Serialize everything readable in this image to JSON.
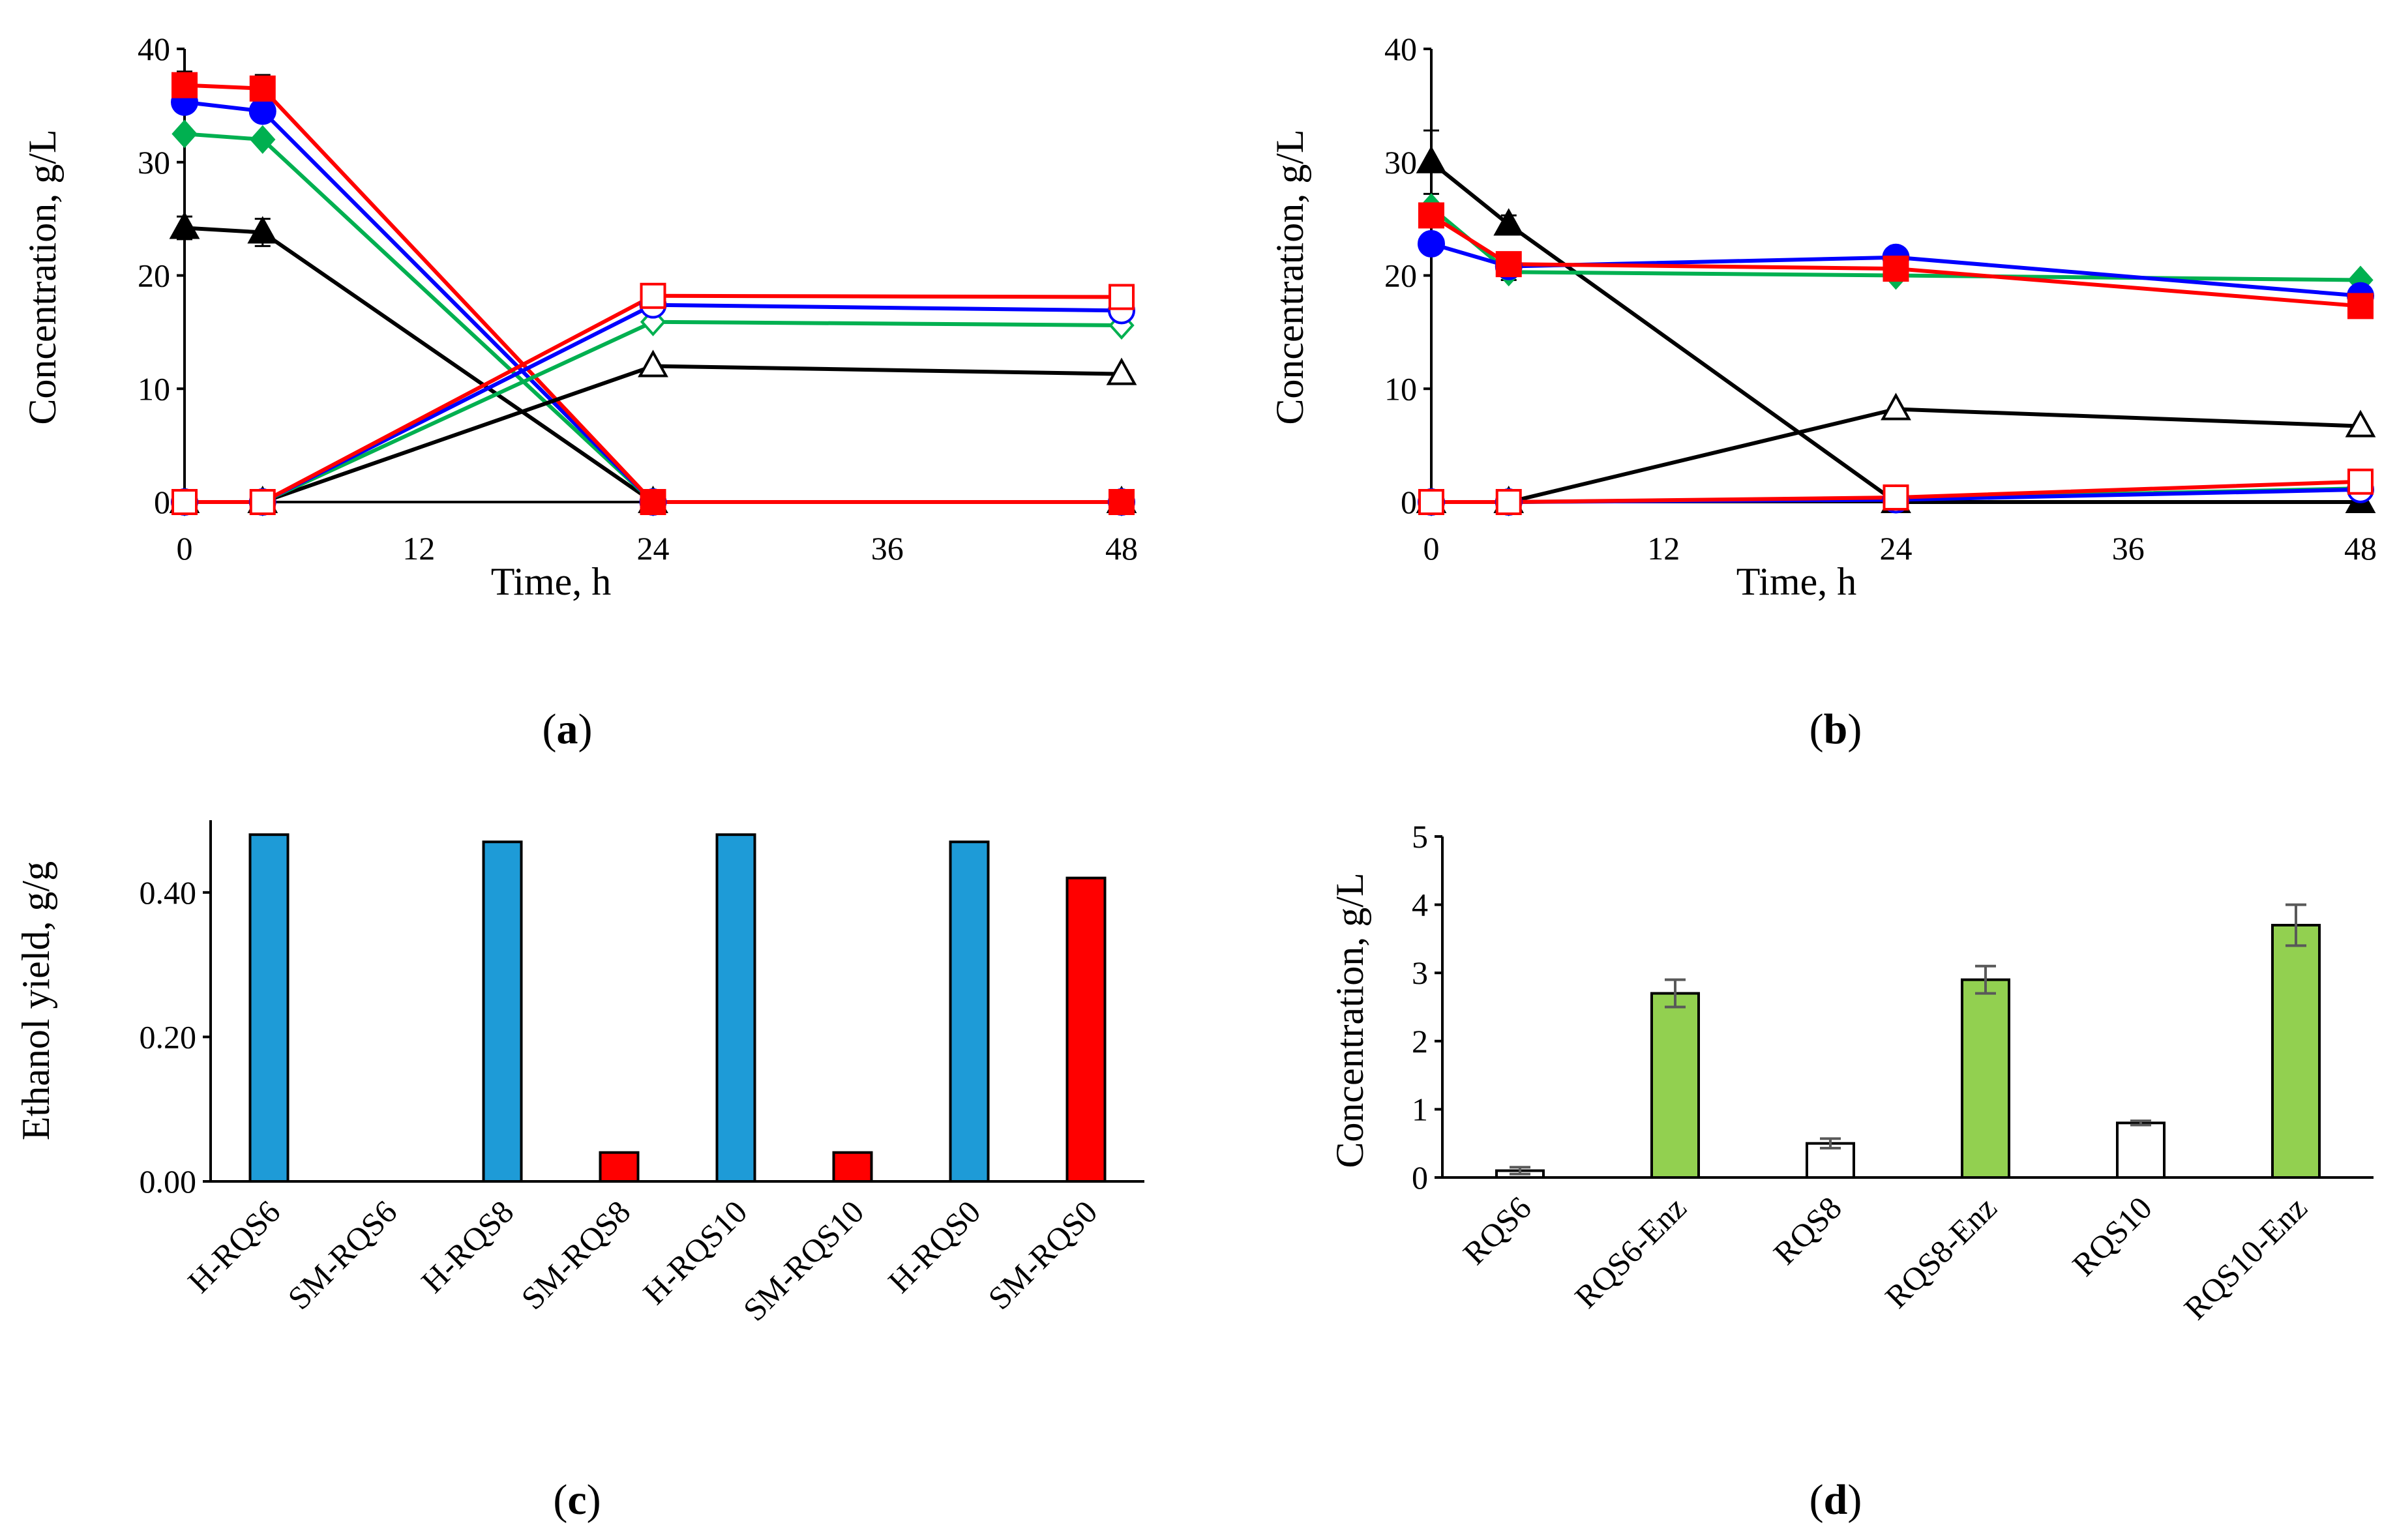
{
  "colors": {
    "black": "#000000",
    "blue": "#0000ff",
    "green": "#00b050",
    "red": "#ff0000",
    "bar_blue": "#1e9bd7",
    "bar_red": "#ff0000",
    "bar_green": "#92d050",
    "bar_white": "#ffffff",
    "errorbar": "#595959"
  },
  "chart_data": [
    {
      "panel": "a",
      "label_open": "(",
      "label_letter": "a",
      "label_close": ")",
      "type": "line",
      "xlabel": "Time, h",
      "ylabel": "Concentration, g/L",
      "xlim": [
        0,
        48
      ],
      "ylim": [
        0,
        40
      ],
      "xticks": [
        0,
        12,
        24,
        36,
        48
      ],
      "yticks": [
        0,
        10,
        20,
        30,
        40
      ],
      "series": [
        {
          "name": "black filled triangle",
          "color": "black",
          "marker": "triangle",
          "filled": true,
          "x": [
            0,
            4,
            24,
            48
          ],
          "y": [
            24.2,
            23.8,
            0,
            0
          ],
          "err": [
            1.0,
            1.2,
            0,
            0
          ]
        },
        {
          "name": "green filled diamond",
          "color": "green",
          "marker": "diamond",
          "filled": true,
          "x": [
            0,
            4,
            24,
            48
          ],
          "y": [
            32.5,
            32.0,
            0,
            0
          ],
          "err": [
            0,
            0,
            0,
            0
          ]
        },
        {
          "name": "blue filled circle",
          "color": "blue",
          "marker": "circle",
          "filled": true,
          "x": [
            0,
            4,
            24,
            48
          ],
          "y": [
            35.3,
            34.5,
            0,
            0
          ],
          "err": [
            0,
            0,
            0,
            0
          ]
        },
        {
          "name": "red filled square",
          "color": "red",
          "marker": "square",
          "filled": true,
          "x": [
            0,
            4,
            24,
            48
          ],
          "y": [
            36.8,
            36.5,
            0,
            0
          ],
          "err": [
            1.2,
            1.2,
            0,
            0
          ]
        },
        {
          "name": "black open triangle",
          "color": "black",
          "marker": "triangle",
          "filled": false,
          "x": [
            0,
            4,
            24,
            48
          ],
          "y": [
            0,
            0,
            12.0,
            11.3
          ],
          "err": [
            0,
            0,
            0,
            0
          ]
        },
        {
          "name": "green open diamond",
          "color": "green",
          "marker": "diamond",
          "filled": false,
          "x": [
            0,
            4,
            24,
            48
          ],
          "y": [
            0,
            0,
            15.9,
            15.6
          ],
          "err": [
            0,
            0,
            0,
            0
          ]
        },
        {
          "name": "blue open circle",
          "color": "blue",
          "marker": "circle",
          "filled": false,
          "x": [
            0,
            4,
            24,
            48
          ],
          "y": [
            0,
            0,
            17.4,
            16.9
          ],
          "err": [
            0,
            0,
            0,
            0
          ]
        },
        {
          "name": "red open square",
          "color": "red",
          "marker": "square",
          "filled": false,
          "x": [
            0,
            4,
            24,
            48
          ],
          "y": [
            0,
            0,
            18.2,
            18.1
          ],
          "err": [
            0,
            0,
            0,
            0
          ]
        }
      ]
    },
    {
      "panel": "b",
      "label_open": "(",
      "label_letter": "b",
      "label_close": ")",
      "type": "line",
      "xlabel": "Time, h",
      "ylabel": "Concentration, g/L",
      "xlim": [
        0,
        48
      ],
      "ylim": [
        0,
        40
      ],
      "xticks": [
        0,
        12,
        24,
        36,
        48
      ],
      "yticks": [
        0,
        10,
        20,
        30,
        40
      ],
      "series": [
        {
          "name": "black filled triangle",
          "color": "black",
          "marker": "triangle",
          "filled": true,
          "x": [
            0,
            4,
            24,
            48
          ],
          "y": [
            30.0,
            24.5,
            0,
            0
          ],
          "err": [
            2.8,
            0.8,
            0,
            0
          ]
        },
        {
          "name": "green filled diamond",
          "color": "green",
          "marker": "diamond",
          "filled": true,
          "x": [
            0,
            4,
            24,
            48
          ],
          "y": [
            26.0,
            20.3,
            20.0,
            19.6
          ],
          "err": [
            0,
            0,
            0,
            0
          ]
        },
        {
          "name": "blue filled circle",
          "color": "blue",
          "marker": "circle",
          "filled": true,
          "x": [
            0,
            4,
            24,
            48
          ],
          "y": [
            22.8,
            20.8,
            21.6,
            18.2
          ],
          "err": [
            0,
            1.2,
            0,
            0
          ]
        },
        {
          "name": "red filled square",
          "color": "red",
          "marker": "square",
          "filled": true,
          "x": [
            0,
            4,
            24,
            48
          ],
          "y": [
            25.3,
            21.0,
            20.6,
            17.3
          ],
          "err": [
            0,
            0,
            0,
            0
          ]
        },
        {
          "name": "black open triangle",
          "color": "black",
          "marker": "triangle",
          "filled": false,
          "x": [
            0,
            4,
            24,
            48
          ],
          "y": [
            0,
            0,
            8.2,
            6.7
          ],
          "err": [
            0,
            0,
            0,
            0
          ]
        },
        {
          "name": "green open diamond",
          "color": "green",
          "marker": "diamond",
          "filled": false,
          "x": [
            0,
            4,
            24,
            48
          ],
          "y": [
            0,
            0,
            0.3,
            1.2
          ],
          "err": [
            0,
            0,
            0,
            0
          ]
        },
        {
          "name": "blue open circle",
          "color": "blue",
          "marker": "circle",
          "filled": false,
          "x": [
            0,
            4,
            24,
            48
          ],
          "y": [
            0,
            0,
            0.2,
            1.1
          ],
          "err": [
            0,
            0,
            0,
            0
          ]
        },
        {
          "name": "red open square",
          "color": "red",
          "marker": "square",
          "filled": false,
          "x": [
            0,
            4,
            24,
            48
          ],
          "y": [
            0,
            0,
            0.4,
            1.8
          ],
          "err": [
            0,
            0,
            0,
            0
          ]
        }
      ]
    },
    {
      "panel": "c",
      "label_open": "(",
      "label_letter": "c",
      "label_close": ")",
      "type": "bar",
      "ylabel": "Ethanol yield, g/g",
      "ylim": [
        0,
        0.5
      ],
      "ytick_values": [
        0,
        0.2,
        0.4
      ],
      "ytick_labels": [
        "0.00",
        "0.20",
        "0.40"
      ],
      "categories": [
        "H-RQS6",
        "SM-RQS6",
        "H-RQS8",
        "SM-RQS8",
        "H-RQS10",
        "SM-RQS10",
        "H-RQS0",
        "SM-RQS0"
      ],
      "values": [
        0.48,
        0.0,
        0.47,
        0.04,
        0.48,
        0.04,
        0.47,
        0.42
      ],
      "bar_colors": [
        "bar_blue",
        "bar_red",
        "bar_blue",
        "bar_red",
        "bar_blue",
        "bar_red",
        "bar_blue",
        "bar_red"
      ]
    },
    {
      "panel": "d",
      "label_open": "(",
      "label_letter": "d",
      "label_close": ")",
      "type": "bar",
      "ylabel": "Concentration, g/L",
      "ylim": [
        0,
        5
      ],
      "ytick_values": [
        0,
        1,
        2,
        3,
        4,
        5
      ],
      "ytick_labels": [
        "0",
        "1",
        "2",
        "3",
        "4",
        "5"
      ],
      "categories": [
        "RQS6",
        "RQS6-Enz",
        "RQS8",
        "RQS8-Enz",
        "RQS10",
        "RQS10-Enz"
      ],
      "values": [
        0.1,
        2.7,
        0.5,
        2.9,
        0.8,
        3.7
      ],
      "errors": [
        0.05,
        0.2,
        0.07,
        0.2,
        0.03,
        0.3
      ],
      "bar_colors": [
        "bar_white",
        "bar_green",
        "bar_white",
        "bar_green",
        "bar_white",
        "bar_green"
      ]
    }
  ]
}
